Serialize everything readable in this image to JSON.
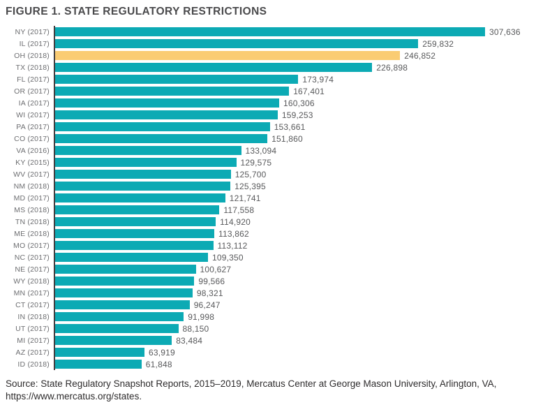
{
  "title": "FIGURE 1. STATE REGULATORY RESTRICTIONS",
  "source": {
    "line1": "Source: State Regulatory Snapshot Reports, 2015–2019, Mercatus Center at George Mason University, Arlington, VA,",
    "line2": "https://www.mercatus.org/states."
  },
  "colors": {
    "bar": "#0caab4",
    "highlight": "#facc73",
    "axis": "#403d40",
    "category_text": "#6d6e71",
    "value_text": "#58595b",
    "title_text": "#4a4a4c"
  },
  "chart_data": {
    "type": "bar",
    "orientation": "horizontal",
    "title": "FIGURE 1. STATE REGULATORY RESTRICTIONS",
    "xlabel": "",
    "ylabel": "",
    "xlim": [
      0,
      320000
    ],
    "grid": false,
    "legend": false,
    "highlighted_category": "OH (2018)",
    "categories": [
      "NY (2017)",
      "IL (2017)",
      "OH (2018)",
      "TX (2018)",
      "FL (2017)",
      "OR (2017)",
      "IA (2017)",
      "WI (2017)",
      "PA (2017)",
      "CO (2017)",
      "VA (2016)",
      "KY (2015)",
      "WV (2017)",
      "NM (2018)",
      "MD (2017)",
      "MS (2018)",
      "TN (2018)",
      "ME (2018)",
      "MO (2017)",
      "NC (2017)",
      "NE (2017)",
      "WY (2018)",
      "MN (2017)",
      "CT (2017)",
      "IN (2018)",
      "UT (2017)",
      "MI (2017)",
      "AZ (2017)",
      "ID (2018)"
    ],
    "values": [
      307636,
      259832,
      246852,
      226898,
      173974,
      167401,
      160306,
      159253,
      153661,
      151860,
      133094,
      129575,
      125700,
      125395,
      121741,
      117558,
      114920,
      113862,
      113112,
      109350,
      100627,
      99566,
      98321,
      96247,
      91998,
      88150,
      83484,
      63919,
      61848
    ],
    "value_labels": [
      "307,636",
      "259,832",
      "246,852",
      "226,898",
      "173,974",
      "167,401",
      "160,306",
      "159,253",
      "153,661",
      "151,860",
      "133,094",
      "129,575",
      "125,700",
      "125,395",
      "121,741",
      "117,558",
      "114,920",
      "113,862",
      "113,112",
      "109,350",
      "100,627",
      "99,566",
      "98,321",
      "96,247",
      "91,998",
      "88,150",
      "83,484",
      "63,919",
      "61,848"
    ]
  }
}
